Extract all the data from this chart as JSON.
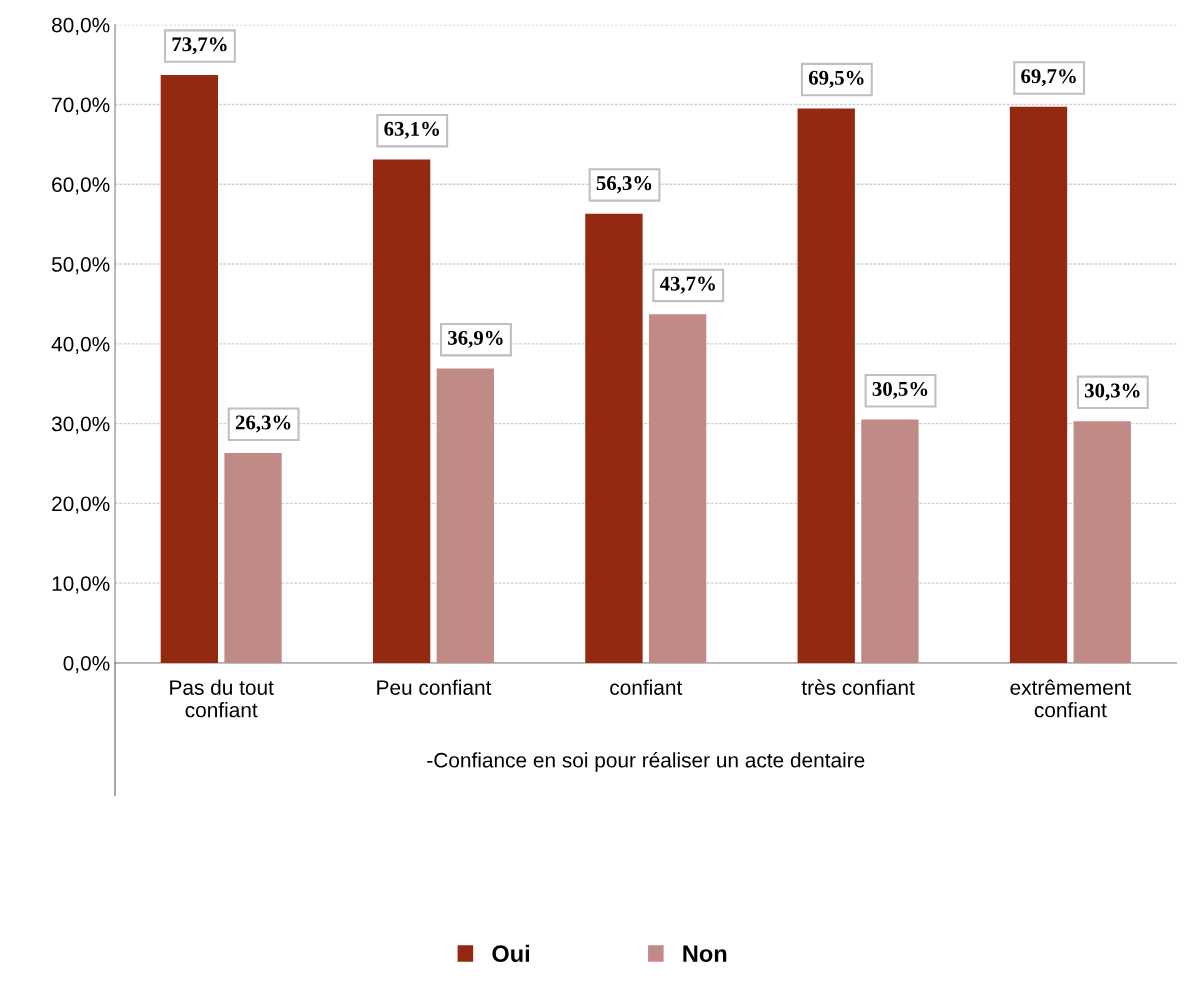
{
  "chart_data": {
    "type": "bar",
    "xlabel": "-Confiance en soi pour réaliser un acte dentaire",
    "categories": [
      "Pas du tout\nconfiant",
      "Peu confiant",
      "confiant",
      "très confiant",
      "extrêmement\nconfiant"
    ],
    "series": [
      {
        "name": "Oui",
        "color": "#922910",
        "values": [
          73.7,
          63.1,
          56.3,
          69.5,
          69.7
        ],
        "value_labels": [
          "73,7%",
          "63,1%",
          "56,3%",
          "69,5%",
          "69,7%"
        ]
      },
      {
        "name": "Non",
        "color": "#c08b86",
        "values": [
          26.3,
          36.9,
          43.7,
          30.5,
          30.3
        ],
        "value_labels": [
          "26,3%",
          "36,9%",
          "43,7%",
          "30,5%",
          "30,3%"
        ]
      }
    ],
    "ylim": [
      0,
      80
    ],
    "yticks": [
      {
        "value": 0,
        "label": "0,0%"
      },
      {
        "value": 10,
        "label": "10,0%"
      },
      {
        "value": 20,
        "label": "20,0%"
      },
      {
        "value": 30,
        "label": "30,0%"
      },
      {
        "value": 40,
        "label": "40,0%"
      },
      {
        "value": 50,
        "label": "50,0%"
      },
      {
        "value": 60,
        "label": "60,0%"
      },
      {
        "value": 70,
        "label": "70,0%"
      },
      {
        "value": 80,
        "label": "80,0%"
      }
    ],
    "grid": "y",
    "legend": "bottom"
  }
}
